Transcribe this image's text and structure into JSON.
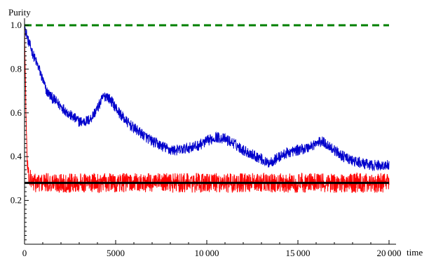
{
  "chart_data": {
    "type": "line",
    "title": "",
    "xlabel": "time",
    "ylabel": "Purity",
    "xlim": [
      0,
      20000
    ],
    "ylim": [
      0.0,
      1.0
    ],
    "x_ticks": [
      0,
      5000,
      10000,
      15000,
      20000
    ],
    "x_tick_labels": [
      "0",
      "5000",
      "10 000",
      "15 000",
      "20 000"
    ],
    "y_ticks": [
      0.2,
      0.4,
      0.6,
      0.8,
      1.0
    ],
    "y_tick_labels": [
      "0.2",
      "0.4",
      "0.6",
      "0.8",
      "1.0"
    ],
    "grid": false,
    "legend": "none",
    "series": [
      {
        "color": "#0000cc",
        "style": "noisy",
        "noise_amplitude": 0.025,
        "x": [
          0,
          200,
          500,
          800,
          1000,
          1200,
          1500,
          2000,
          2500,
          3000,
          3300,
          3600,
          4000,
          4300,
          4500,
          4800,
          5200,
          5600,
          6000,
          6500,
          7000,
          7500,
          8000,
          8500,
          9000,
          9500,
          10000,
          10500,
          11000,
          11500,
          12000,
          12500,
          13000,
          13300,
          13600,
          14000,
          14500,
          15000,
          15500,
          16000,
          16300,
          16700,
          17000,
          17500,
          18000,
          18500,
          19000,
          19500,
          20000
        ],
        "y": [
          1.0,
          0.93,
          0.86,
          0.8,
          0.75,
          0.7,
          0.67,
          0.63,
          0.59,
          0.56,
          0.56,
          0.57,
          0.62,
          0.67,
          0.68,
          0.65,
          0.6,
          0.56,
          0.53,
          0.5,
          0.47,
          0.45,
          0.43,
          0.43,
          0.44,
          0.45,
          0.47,
          0.49,
          0.48,
          0.46,
          0.43,
          0.41,
          0.39,
          0.37,
          0.38,
          0.4,
          0.42,
          0.43,
          0.44,
          0.46,
          0.47,
          0.45,
          0.43,
          0.4,
          0.38,
          0.37,
          0.36,
          0.36,
          0.36
        ]
      },
      {
        "color": "#ff0000",
        "style": "noisy",
        "noise_amplitude": 0.045,
        "x": [
          0,
          20,
          50,
          100,
          150,
          250,
          400,
          600,
          1000,
          5000,
          10000,
          15000,
          20000
        ],
        "y": [
          1.0,
          0.86,
          0.75,
          0.5,
          0.38,
          0.3,
          0.29,
          0.28,
          0.28,
          0.28,
          0.28,
          0.28,
          0.28
        ]
      },
      {
        "color": "#008000",
        "style": "dashed",
        "x": [
          0,
          20000
        ],
        "y": [
          1.0,
          1.0
        ]
      },
      {
        "color": "#000000",
        "style": "solid-thick",
        "x": [
          0,
          20000
        ],
        "y": [
          0.28,
          0.28
        ]
      }
    ]
  }
}
